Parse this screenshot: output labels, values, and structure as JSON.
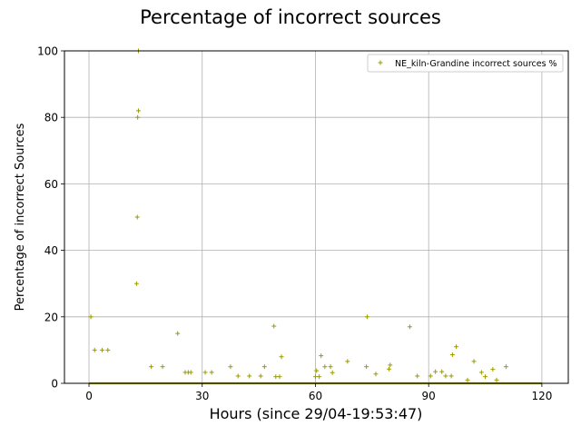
{
  "chart_data": {
    "type": "scatter",
    "title": "Percentage of incorrect sources",
    "xlabel": "Hours (since 29/04-19:53:47)",
    "ylabel": "Percentage of incorrect Sources",
    "xlim": [
      -6.5,
      127
    ],
    "ylim": [
      0,
      100
    ],
    "xticks": [
      0,
      30,
      60,
      90,
      120
    ],
    "yticks": [
      0,
      20,
      40,
      60,
      80,
      100
    ],
    "grid": true,
    "legend_position": "top-right",
    "marker": "+",
    "color": "#9a9a00",
    "series": [
      {
        "name": "NE_kiln-Grandine incorrect sources %",
        "zero_baseline": {
          "from": 0,
          "to": 120
        },
        "points": [
          [
            0.5,
            20
          ],
          [
            1.5,
            10
          ],
          [
            3.5,
            10
          ],
          [
            5,
            10
          ],
          [
            12.6,
            30
          ],
          [
            12.8,
            50
          ],
          [
            12.9,
            80
          ],
          [
            13.1,
            82
          ],
          [
            13.1,
            100
          ],
          [
            16.5,
            5
          ],
          [
            19.5,
            5
          ],
          [
            23.5,
            15
          ],
          [
            25.5,
            3.3
          ],
          [
            26.3,
            3.3
          ],
          [
            27,
            3.3
          ],
          [
            30.8,
            3.3
          ],
          [
            32.5,
            3.3
          ],
          [
            37.5,
            5
          ],
          [
            39.5,
            2.2
          ],
          [
            42.5,
            2.2
          ],
          [
            45.5,
            2.2
          ],
          [
            46.5,
            5
          ],
          [
            49,
            17.2
          ],
          [
            49.5,
            2
          ],
          [
            50.5,
            2
          ],
          [
            51,
            8
          ],
          [
            60,
            2
          ],
          [
            60.3,
            3.8
          ],
          [
            61,
            2
          ],
          [
            61.5,
            8.3
          ],
          [
            62.5,
            5
          ],
          [
            64,
            5
          ],
          [
            64.5,
            3.2
          ],
          [
            68.5,
            6.6
          ],
          [
            73.5,
            5
          ],
          [
            73.7,
            20
          ],
          [
            76,
            2.8
          ],
          [
            79.5,
            4.3
          ],
          [
            79.8,
            5.5
          ],
          [
            85,
            17
          ],
          [
            87,
            2.2
          ],
          [
            90.5,
            2.2
          ],
          [
            91.8,
            3.5
          ],
          [
            93.5,
            3.5
          ],
          [
            94.5,
            2.2
          ],
          [
            96,
            2.2
          ],
          [
            96.3,
            8.6
          ],
          [
            97.3,
            11
          ],
          [
            100.3,
            1
          ],
          [
            102,
            6.6
          ],
          [
            104,
            3.3
          ],
          [
            105,
            2
          ],
          [
            107,
            4.2
          ],
          [
            108,
            1
          ],
          [
            110.5,
            5
          ]
        ]
      }
    ]
  }
}
